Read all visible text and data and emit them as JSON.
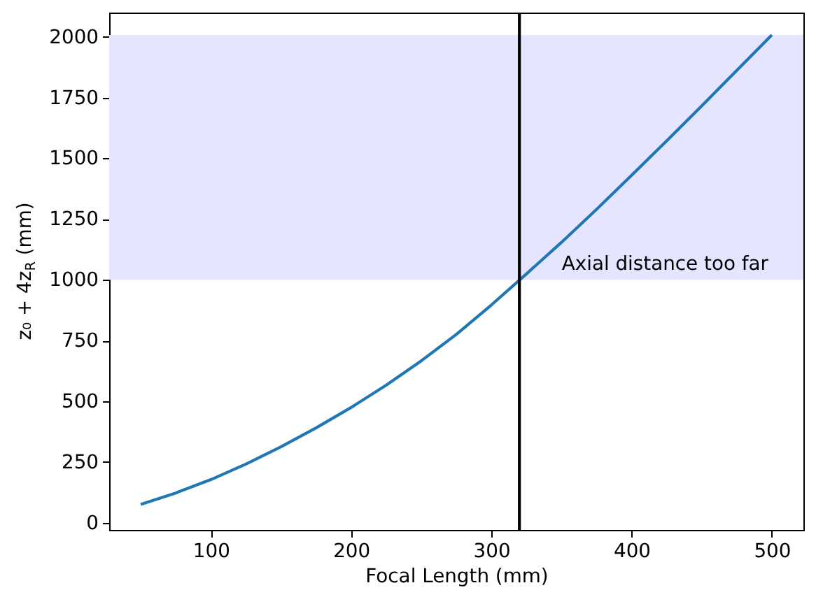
{
  "chart_data": {
    "type": "line",
    "xlabel": "Focal Length (mm)",
    "ylabel": "z₀ + 4z$_{R}$ (mm)",
    "x": [
      50,
      75,
      100,
      125,
      150,
      175,
      200,
      225,
      250,
      275,
      300,
      325,
      350,
      375,
      400,
      425,
      450,
      475,
      500
    ],
    "series": [
      {
        "color": "#1f77b4",
        "values": [
          75,
          122,
          177,
          241,
          312,
          390,
          474,
          566,
          666,
          775,
          896,
          1024,
          1154,
          1290,
          1430,
          1572,
          1716,
          1862,
          2008
        ]
      }
    ],
    "xlim": [
      27.5,
      522.5
    ],
    "ylim": [
      -30,
      2100
    ],
    "xticks": [
      100,
      200,
      300,
      400,
      500
    ],
    "yticks": [
      0,
      250,
      500,
      750,
      1000,
      1250,
      1500,
      1750,
      2000
    ],
    "bands": [
      {
        "axis": "y",
        "from": 1000,
        "to": 2008,
        "color": "#e5e5ff"
      }
    ],
    "ref_lines": [
      {
        "axis": "x",
        "value": 320,
        "color": "#000000"
      }
    ],
    "annotations": [
      "Axial distance too far"
    ]
  }
}
